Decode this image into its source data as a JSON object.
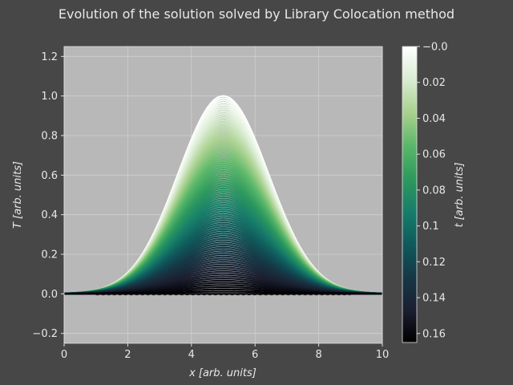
{
  "chart_data": {
    "type": "area",
    "title": "Evolution of the solution solved by Library Colocation method",
    "xlabel_var": "x",
    "xlabel_unit": "[arb. units]",
    "ylabel_var": "T",
    "ylabel_unit": "[arb. units]",
    "xlim": [
      0,
      10
    ],
    "ylim": [
      -0.25,
      1.25
    ],
    "xticks": [
      0,
      2,
      4,
      6,
      8,
      10
    ],
    "xtick_labels": [
      "0",
      "2",
      "4",
      "6",
      "8",
      "10"
    ],
    "yticks": [
      -0.2,
      0.0,
      0.2,
      0.4,
      0.6,
      0.8,
      1.0,
      1.2
    ],
    "ytick_labels": [
      "−0.2",
      "0.0",
      "0.2",
      "0.4",
      "0.6",
      "0.8",
      "1.0",
      "1.2"
    ],
    "grid": true,
    "background": "#b8b8b8",
    "initial_profile": {
      "shape": "gaussian",
      "center": 5,
      "sigma": 1.42,
      "peak": 1.0,
      "baseline": 0.0
    },
    "time_range": [
      0.0,
      0.165
    ],
    "final_profile_peak": 0.0,
    "colorbar": {
      "label_var": "t",
      "label_unit": "[arb. units]",
      "colormap": [
        "#ffffff",
        "#d9ecd2",
        "#a9d18e",
        "#5cb86a",
        "#2e9a5e",
        "#177e6a",
        "#0f5a5c",
        "#163846",
        "#1b1f31",
        "#000000"
      ],
      "range": [
        0.0,
        0.165
      ],
      "inverted": true,
      "ticks": [
        0.0,
        0.02,
        0.04,
        0.06,
        0.08,
        0.1,
        0.12,
        0.14,
        0.16
      ],
      "tick_labels": [
        "−0.0",
        "0.02",
        "0.04",
        "0.06",
        "0.08",
        "0.1",
        "0.12",
        "0.14",
        "0.16"
      ]
    }
  }
}
